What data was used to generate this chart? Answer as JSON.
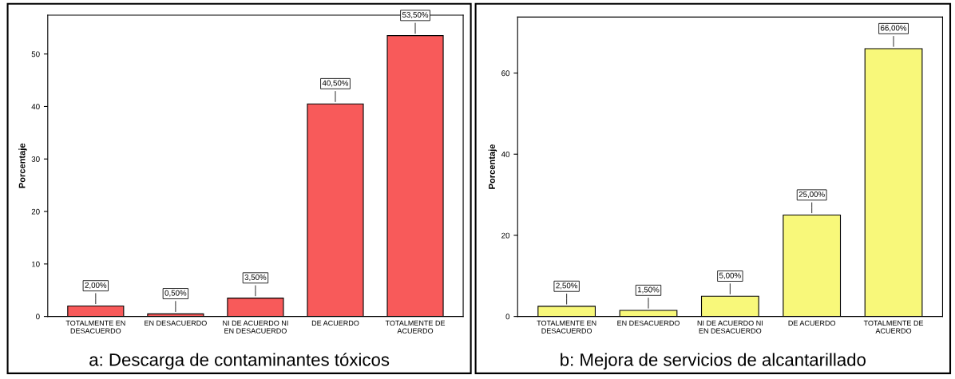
{
  "chart_data": [
    {
      "type": "bar",
      "title": "a: Descarga de contaminantes tóxicos",
      "ylabel": "Porcentaje",
      "categories": [
        "TOTALMENTE EN\nDESACUERDO",
        "EN DESACUERDO",
        "NI DE ACUERDO NI\nEN DESACUERDO",
        "DE ACUERDO",
        "TOTALMENTE DE\nACUERDO"
      ],
      "values": [
        2.0,
        0.5,
        3.5,
        40.5,
        53.5
      ],
      "value_labels": [
        "2,00%",
        "0,50%",
        "3,50%",
        "40,50%",
        "53,50%"
      ],
      "color": "#f85a5a",
      "ylim": [
        0,
        57.4
      ],
      "yticks": [
        0,
        10,
        20,
        30,
        40,
        50
      ],
      "grid": false
    },
    {
      "type": "bar",
      "title": "b: Mejora de servicios de alcantarillado",
      "ylabel": "Porcentaje",
      "categories": [
        "TOTALMENTE EN\nDESACUERDO",
        "EN DESACUERDO",
        "NI DE ACUERDO NI\nEN DESACUERDO",
        "DE ACUERDO",
        "TOTALMENTE DE\nACUERDO"
      ],
      "values": [
        2.5,
        1.5,
        5.0,
        25.0,
        66.0
      ],
      "value_labels": [
        "2,50%",
        "1,50%",
        "5,00%",
        "25,00%",
        "66,00%"
      ],
      "color": "#f8f87a",
      "ylim": [
        0,
        73.8
      ],
      "yticks": [
        0,
        20,
        40,
        60
      ],
      "grid": false
    }
  ]
}
